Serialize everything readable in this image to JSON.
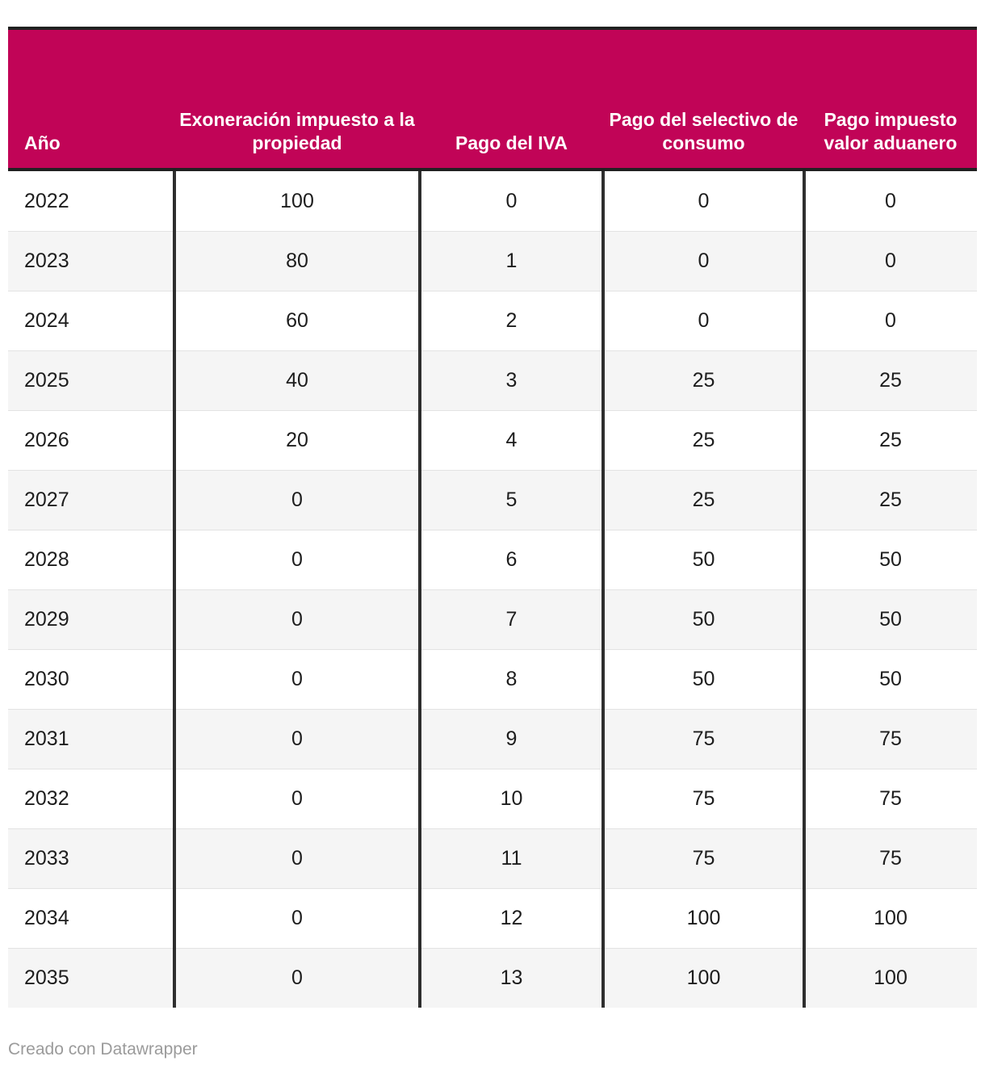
{
  "chart_data": {
    "type": "table",
    "title": "",
    "columns": [
      {
        "label": "Año"
      },
      {
        "label": "Exoneración impuesto a la propiedad"
      },
      {
        "label": "Pago del IVA"
      },
      {
        "label": "Pago del selectivo de consumo"
      },
      {
        "label": "Pago impuesto valor aduanero"
      }
    ],
    "rows": [
      [
        "2022",
        "100",
        "0",
        "0",
        "0"
      ],
      [
        "2023",
        "80",
        "1",
        "0",
        "0"
      ],
      [
        "2024",
        "60",
        "2",
        "0",
        "0"
      ],
      [
        "2025",
        "40",
        "3",
        "25",
        "25"
      ],
      [
        "2026",
        "20",
        "4",
        "25",
        "25"
      ],
      [
        "2027",
        "0",
        "5",
        "25",
        "25"
      ],
      [
        "2028",
        "0",
        "6",
        "50",
        "50"
      ],
      [
        "2029",
        "0",
        "7",
        "50",
        "50"
      ],
      [
        "2030",
        "0",
        "8",
        "50",
        "50"
      ],
      [
        "2031",
        "0",
        "9",
        "75",
        "75"
      ],
      [
        "2032",
        "0",
        "10",
        "75",
        "75"
      ],
      [
        "2033",
        "0",
        "11",
        "75",
        "75"
      ],
      [
        "2034",
        "0",
        "12",
        "100",
        "100"
      ],
      [
        "2035",
        "0",
        "13",
        "100",
        "100"
      ]
    ]
  },
  "footer": {
    "credit": "Creado con Datawrapper"
  },
  "colors": {
    "header_bg": "#c10457",
    "header_text": "#ffffff",
    "border_dark": "#2e2e2e",
    "frame_border": "#212121",
    "stripe_bg": "#f5f5f5",
    "row_line": "#e3e3e3",
    "body_text": "#1d1d1d",
    "footer_text": "#9b9b9b"
  }
}
